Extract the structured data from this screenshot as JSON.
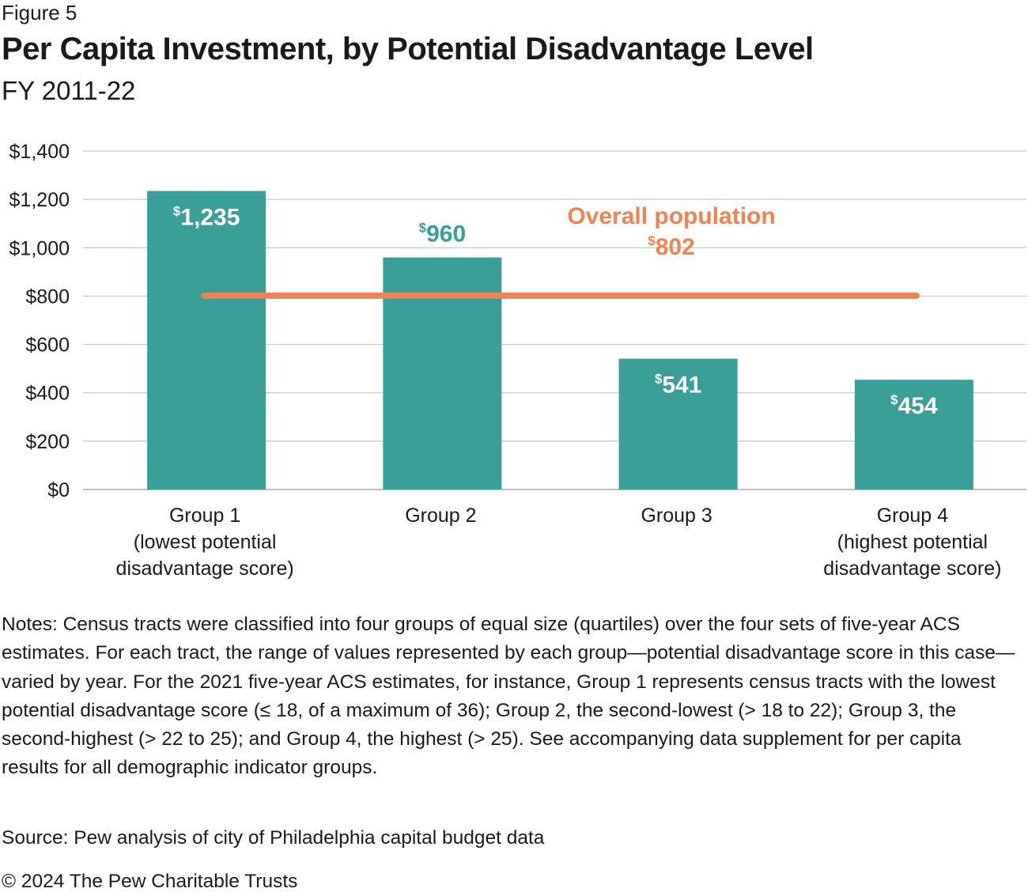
{
  "figure_label": "Figure 5",
  "notes": "Notes: Census tracts were classified into four groups of equal size (quartiles) over the four sets of five-year ACS estimates. For each tract, the range of values represented by each group—potential disadvantage score in this case—varied by year. For the 2021 five-year ACS estimates, for instance, Group 1 represents census tracts with the lowest potential disadvantage score (≤ 18, of a maximum of 36); Group 2, the second-lowest (> 18 to 22); Group 3, the second-highest (> 22 to 25); and Group 4, the highest (> 25). See accompanying data supplement for per capita results for all demographic indicator groups.",
  "source": "Source: Pew analysis of city of Philadelphia capital budget data",
  "copyright": "© 2024 The Pew Charitable Trusts",
  "colors": {
    "bar": "#3a9e99",
    "reference_line": "#ee8452",
    "bar_label_inside": "#ffffff",
    "bar_label_outside": "#3a9e99",
    "grid": "#c8c8c8"
  },
  "chart_data": {
    "type": "bar",
    "title": "Per Capita Investment, by Potential Disadvantage Level",
    "subtitle": "FY 2011-22",
    "categories": [
      [
        "Group 1",
        "(lowest potential",
        "disadvantage score)"
      ],
      [
        "Group 2"
      ],
      [
        "Group 3"
      ],
      [
        "Group 4",
        "(highest potential",
        "disadvantage score)"
      ]
    ],
    "values": [
      1235,
      960,
      541,
      454
    ],
    "value_labels": [
      {
        "currency": "$",
        "amount": "1,235",
        "position": "inside"
      },
      {
        "currency": "$",
        "amount": "960",
        "position": "outside"
      },
      {
        "currency": "$",
        "amount": "541",
        "position": "inside"
      },
      {
        "currency": "$",
        "amount": "454",
        "position": "inside"
      }
    ],
    "yticks": [
      "$0",
      "$200",
      "$400",
      "$600",
      "$800",
      "$1,000",
      "$1,200",
      "$1,400"
    ],
    "ylim": [
      0,
      1400
    ],
    "ytick_step": 200,
    "grid": true,
    "reference_line": {
      "value": 802,
      "label": "Overall population",
      "currency": "$",
      "amount": "802"
    }
  }
}
